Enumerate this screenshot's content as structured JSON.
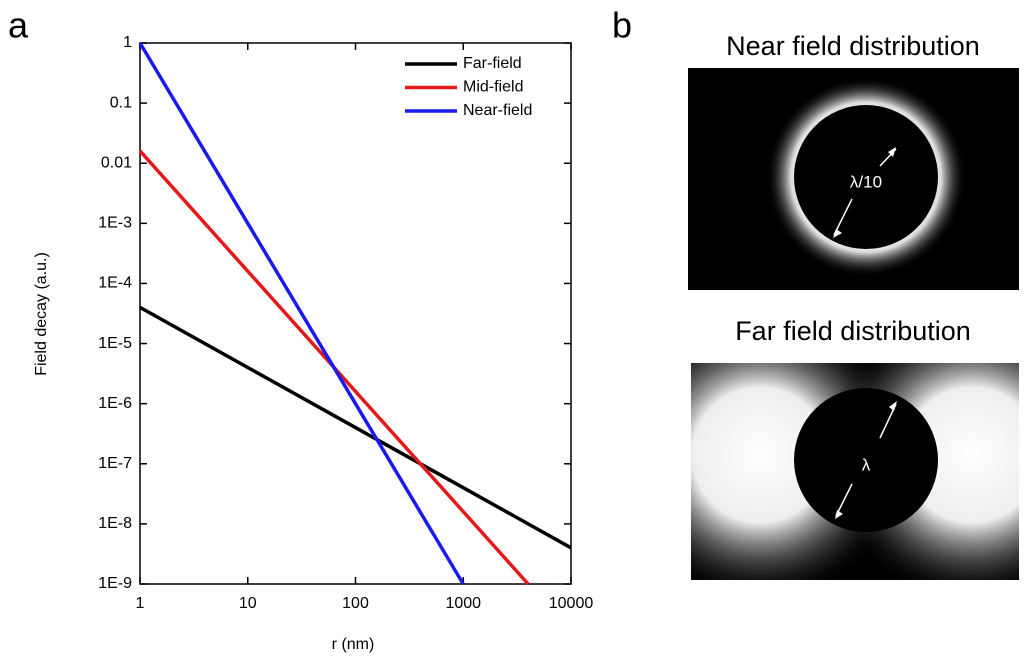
{
  "panel_labels": [
    "a",
    "b"
  ],
  "chart_data": {
    "type": "line",
    "xlabel": "r (nm)",
    "ylabel": "Field decay (a.u.)",
    "x": [
      1,
      10,
      100,
      1000,
      4000,
      10000
    ],
    "series": [
      {
        "name": "Far-field",
        "color": "#000000",
        "values": [
          4e-05,
          4e-06,
          4e-07,
          4e-08,
          1e-08,
          4e-09
        ]
      },
      {
        "name": "Mid-field",
        "color": "#e41a1a",
        "values": [
          0.016,
          0.00016,
          1.6e-06,
          1.6e-08,
          1e-09,
          null
        ]
      },
      {
        "name": "Near-field",
        "color": "#1a1aee",
        "values": [
          1,
          0.001,
          1e-06,
          1e-09,
          null,
          null
        ]
      }
    ],
    "xscale": "log",
    "yscale": "log",
    "xlim": [
      1,
      10000
    ],
    "ylim": [
      1e-09,
      1
    ],
    "xticks": [
      1,
      10,
      100,
      1000,
      10000
    ],
    "yticks": [
      1,
      0.1,
      0.01,
      {
        "value": 0.001,
        "label": "1E-3"
      },
      {
        "value": 0.0001,
        "label": "1E-4"
      },
      {
        "value": 1e-05,
        "label": "1E-5"
      },
      {
        "value": 1e-06,
        "label": "1E-6"
      },
      {
        "value": 1e-07,
        "label": "1E-7"
      },
      {
        "value": 1e-08,
        "label": "1E-8"
      },
      {
        "value": 1e-09,
        "label": "1E-9"
      }
    ],
    "legend": "top-right"
  },
  "images": [
    {
      "title": "Near field distribution",
      "label": "λ/10"
    },
    {
      "title": "Far field distribution",
      "label": "λ"
    }
  ]
}
